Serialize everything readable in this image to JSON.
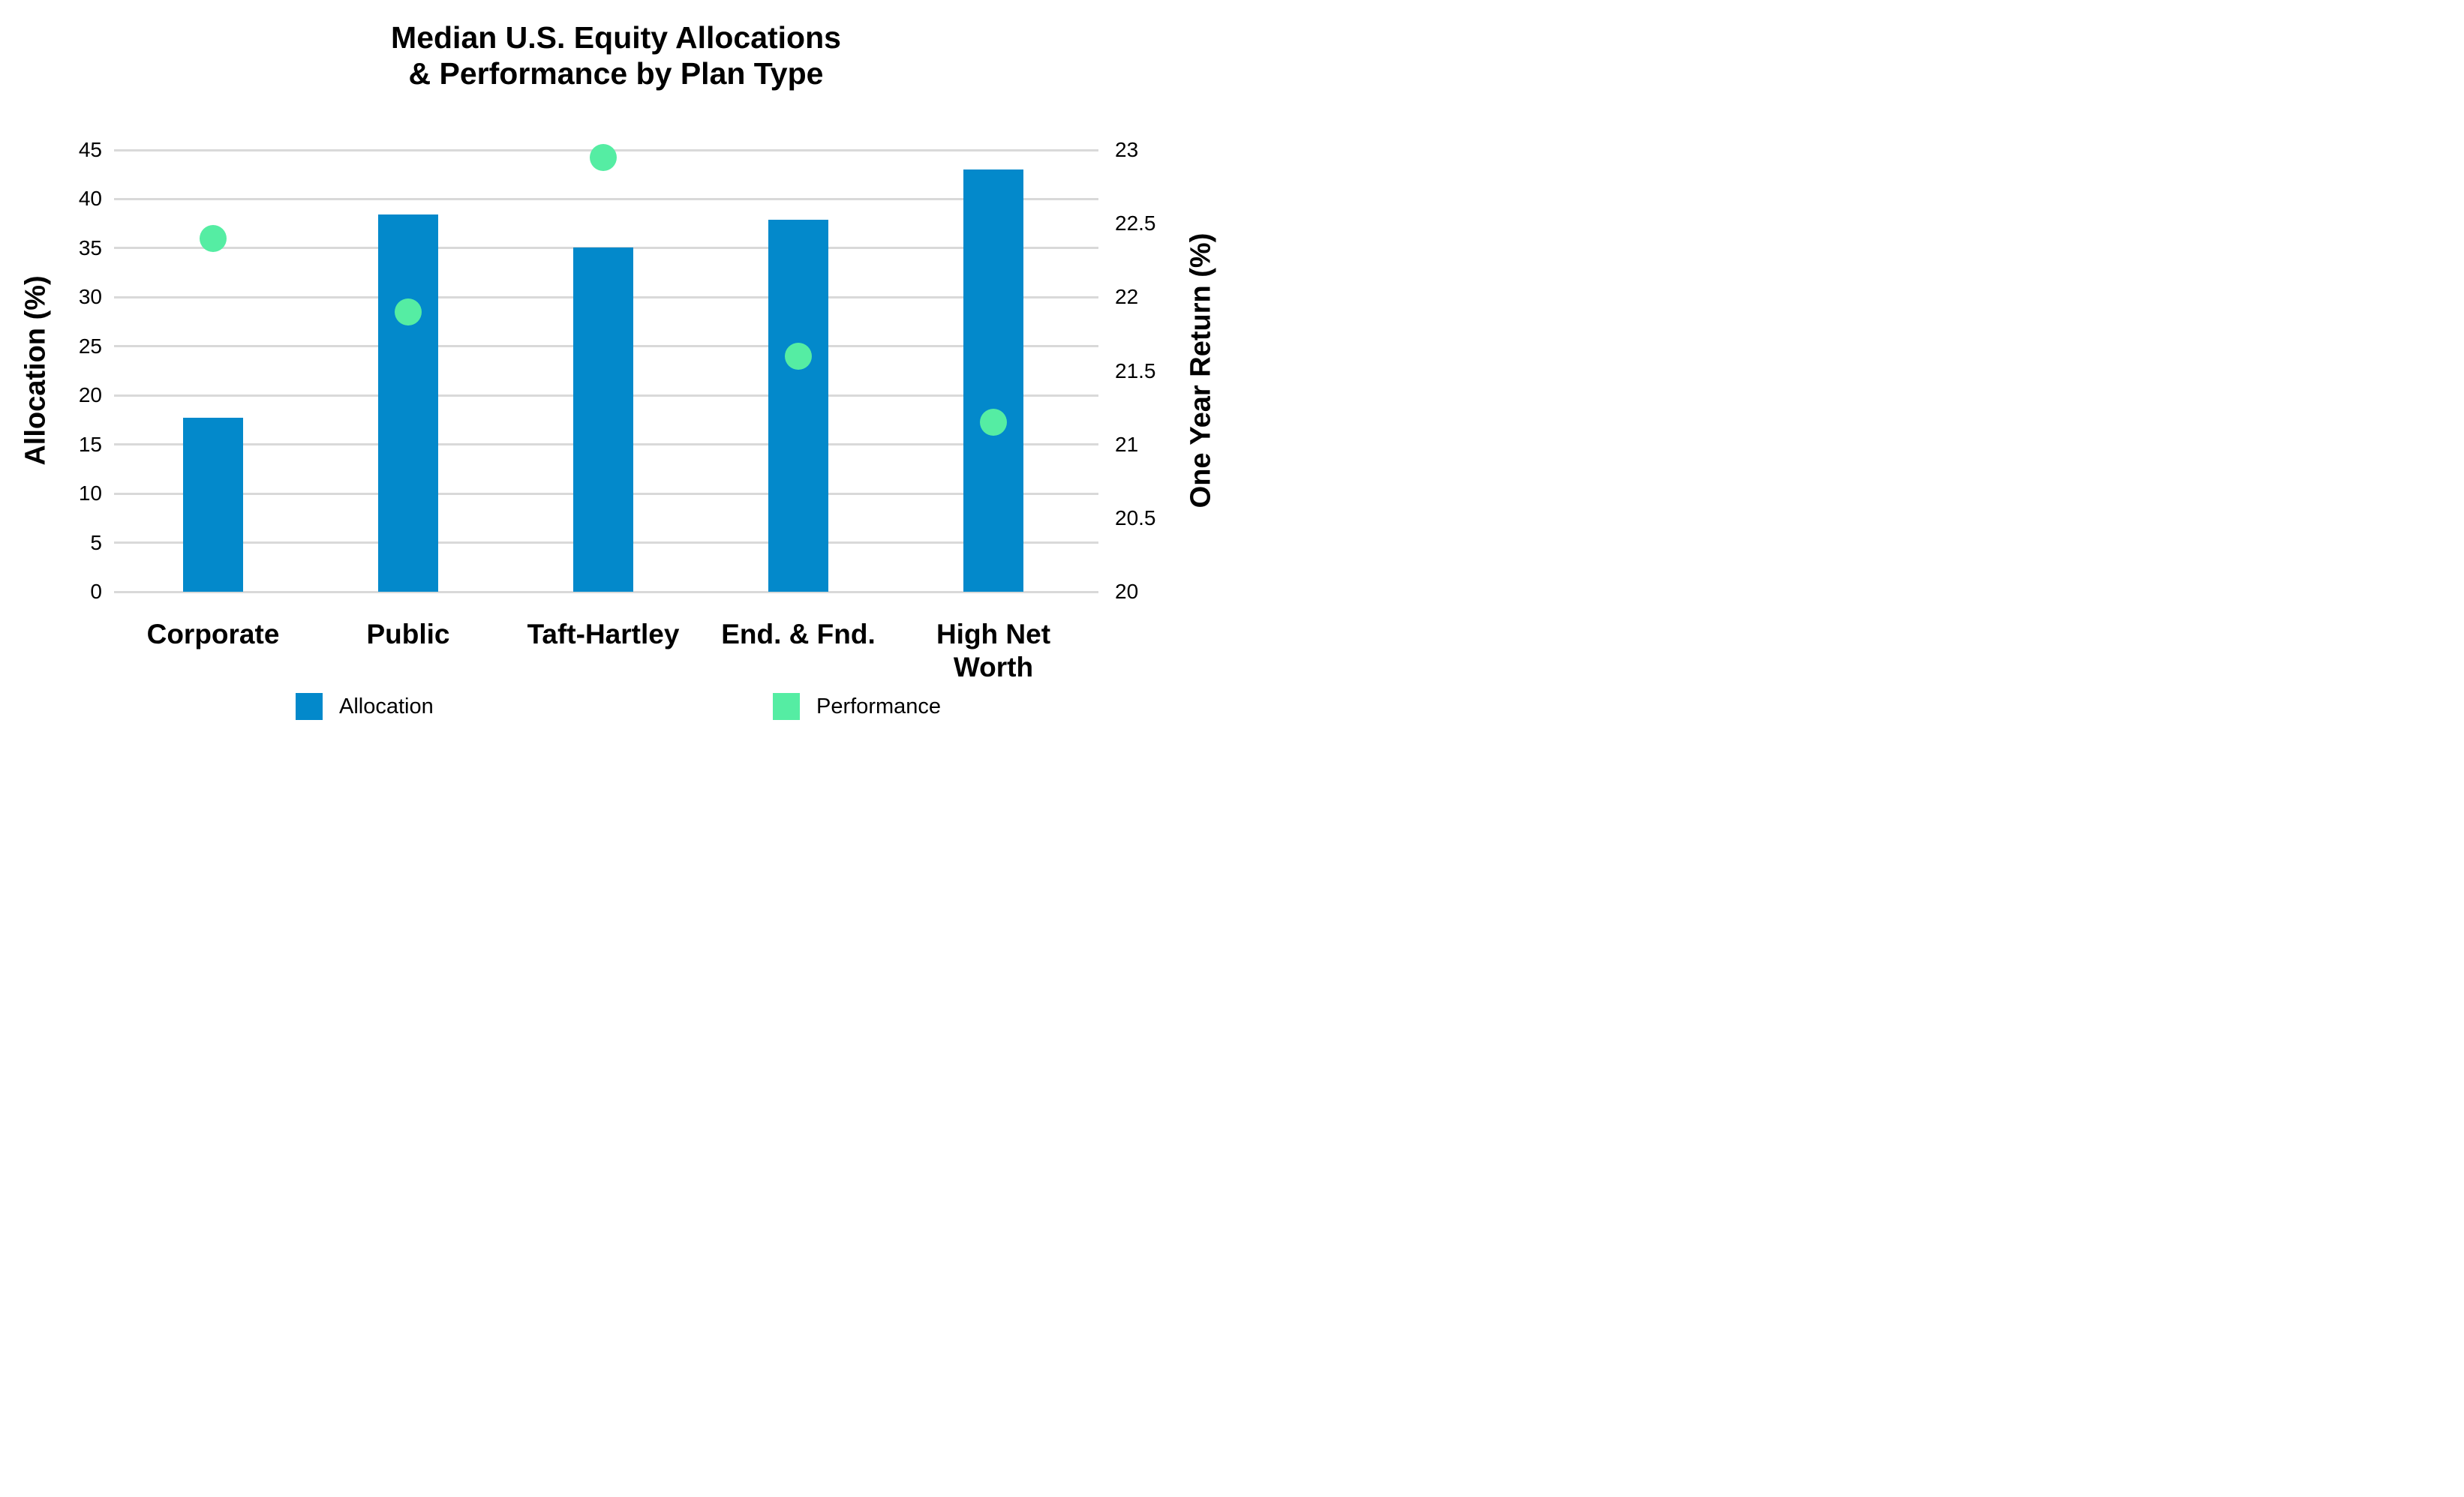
{
  "title": {
    "line1": "Median U.S. Equity Allocations",
    "line2": "& Performance by Plan Type"
  },
  "chart_data": {
    "type": "bar",
    "title": "Median U.S. Equity Allocations & Performance by Plan Type",
    "categories": [
      "Corporate",
      "Public",
      "Taft-Hartley",
      "End. & Fnd.",
      "High Net Worth"
    ],
    "series": [
      {
        "name": "Allocation",
        "type": "bar",
        "axis": "left",
        "values": [
          17.7,
          38.4,
          35.1,
          37.9,
          43.0
        ],
        "color": "#0389cb"
      },
      {
        "name": "Performance",
        "type": "scatter",
        "axis": "right",
        "values": [
          22.4,
          21.9,
          22.95,
          21.6,
          21.15
        ],
        "color": "#55eda3"
      }
    ],
    "left_axis": {
      "label": "Allocation (%)",
      "min": 0,
      "max": 45,
      "step": 5,
      "ticks": [
        "45",
        "40",
        "35",
        "30",
        "25",
        "20",
        "15",
        "10",
        "5",
        "0"
      ]
    },
    "right_axis": {
      "label": "One Year Return (%)",
      "min": 20,
      "max": 23,
      "step": 0.5,
      "ticks": [
        "23",
        "22.5",
        "22",
        "21.5",
        "21",
        "20.5",
        "20"
      ]
    },
    "grid": true,
    "legend_position": "bottom"
  },
  "legend": {
    "items": [
      {
        "label": "Allocation",
        "color": "#0389cb"
      },
      {
        "label": "Performance",
        "color": "#55eda3"
      }
    ]
  },
  "colors": {
    "bar_blue": "#0389cb",
    "dot_green": "#55eda3",
    "gridline": "#d9d9d9",
    "text": "#000000"
  }
}
